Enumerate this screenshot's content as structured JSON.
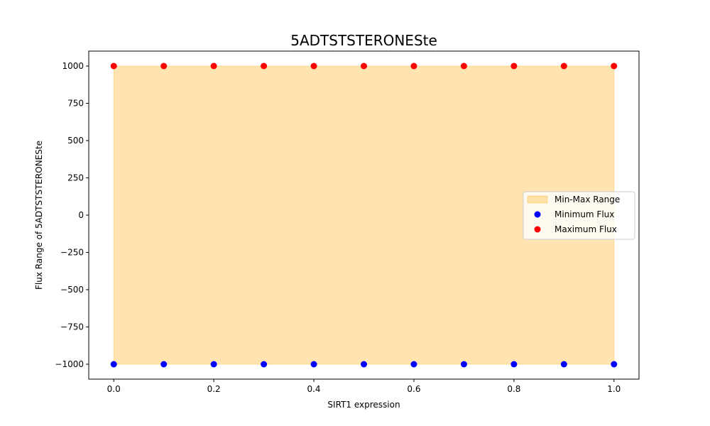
{
  "chart_data": {
    "type": "scatter",
    "title": "5ADTSTSTERONESte",
    "xlabel": "SIRT1 expression",
    "ylabel": "Flux Range of 5ADTSTSTERONESte",
    "xlim": [
      -0.05,
      1.05
    ],
    "ylim": [
      -1100,
      1100
    ],
    "x": [
      0.0,
      0.1,
      0.2,
      0.3,
      0.4,
      0.5,
      0.6,
      0.7,
      0.8,
      0.9,
      1.0
    ],
    "xticks": [
      0.0,
      0.2,
      0.4,
      0.6,
      0.8,
      1.0
    ],
    "xtick_labels": [
      "0.0",
      "0.2",
      "0.4",
      "0.6",
      "0.8",
      "1.0"
    ],
    "yticks": [
      1000,
      750,
      500,
      250,
      0,
      -250,
      -500,
      -750,
      -1000
    ],
    "ytick_labels": [
      "1000",
      "750",
      "500",
      "250",
      "0",
      "−250",
      "−500",
      "−750",
      "−1000"
    ],
    "series": [
      {
        "name": "Minimum Flux",
        "color": "#0000ff",
        "values": [
          -1000,
          -1000,
          -1000,
          -1000,
          -1000,
          -1000,
          -1000,
          -1000,
          -1000,
          -1000,
          -1000
        ]
      },
      {
        "name": "Maximum Flux",
        "color": "#ff0000",
        "values": [
          1000,
          1000,
          1000,
          1000,
          1000,
          1000,
          1000,
          1000,
          1000,
          1000,
          1000
        ]
      }
    ],
    "range_fill": {
      "name": "Min-Max Range",
      "color": "#ffa500",
      "opacity": 0.3
    },
    "legend": {
      "position": "center-right",
      "entries": [
        "Min-Max Range",
        "Minimum Flux",
        "Maximum Flux"
      ]
    },
    "grid": false
  }
}
